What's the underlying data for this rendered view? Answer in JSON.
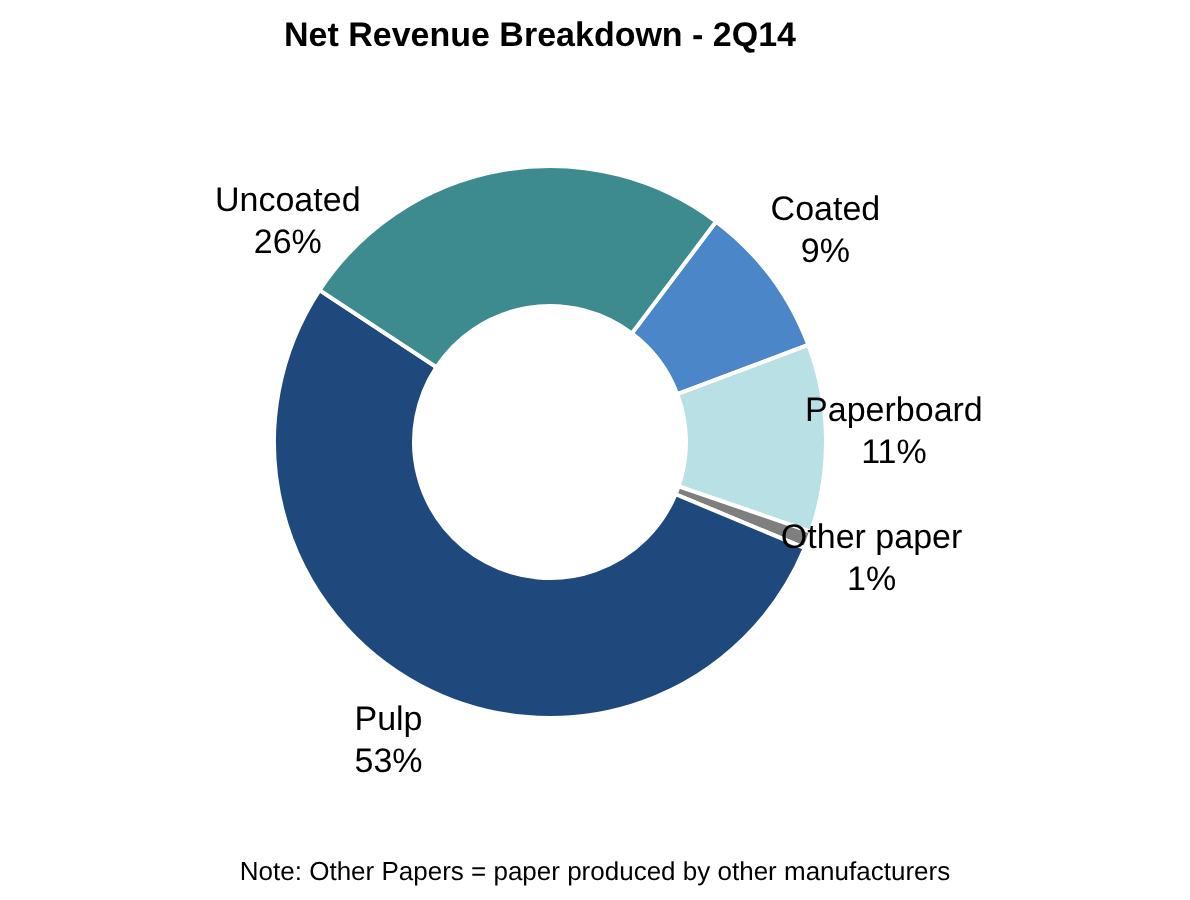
{
  "chart_data": {
    "type": "donut",
    "title": "Net Revenue Breakdown - 2Q14",
    "categories": [
      "Coated",
      "Paperboard",
      "Other paper",
      "Pulp",
      "Uncoated"
    ],
    "values": [
      9,
      11,
      1,
      53,
      26
    ],
    "value_labels": [
      "9%",
      "11%",
      "1%",
      "53%",
      "26%"
    ],
    "colors": [
      "#4a86c8",
      "#b9e0e4",
      "#7f7f7f",
      "#1f497d",
      "#3d8b8f"
    ],
    "annotations": [
      "Note: Other Papers = paper produced by other manufacturers"
    ]
  }
}
